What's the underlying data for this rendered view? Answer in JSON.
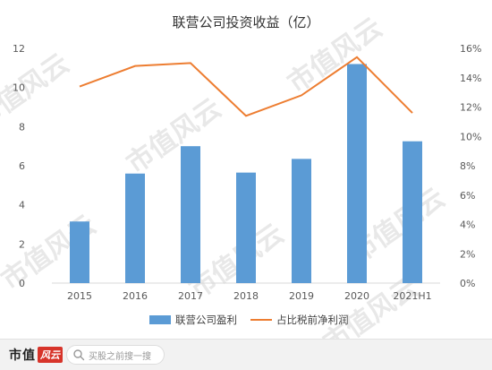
{
  "chart_data": {
    "type": "bar+line",
    "title": "联营公司投资收益（亿）",
    "categories": [
      "2015",
      "2016",
      "2017",
      "2018",
      "2019",
      "2020",
      "2021H1"
    ],
    "series": [
      {
        "name": "联营公司盈利",
        "type": "bar",
        "axis": "left",
        "color": "#5b9bd5",
        "values": [
          3.15,
          5.6,
          7.0,
          5.65,
          6.35,
          11.2,
          7.25
        ]
      },
      {
        "name": "占比税前净利润",
        "type": "line",
        "axis": "right",
        "color": "#ed7d31",
        "values": [
          13.4,
          14.8,
          15.0,
          11.4,
          12.8,
          15.4,
          11.6
        ]
      }
    ],
    "left_axis": {
      "min": 0,
      "max": 12,
      "ticks": [
        "0",
        "2",
        "4",
        "6",
        "8",
        "10",
        "12"
      ]
    },
    "right_axis": {
      "min": 0,
      "max": 16,
      "ticks": [
        "0%",
        "2%",
        "4%",
        "6%",
        "8%",
        "10%",
        "12%",
        "14%",
        "16%"
      ]
    },
    "grid": false,
    "legend_position": "bottom",
    "watermark": "市值风云"
  },
  "footer": {
    "brand": "市值",
    "brand_badge": "风云",
    "search_placeholder": "买股之前搜一搜",
    "search_icon": "search-icon"
  }
}
